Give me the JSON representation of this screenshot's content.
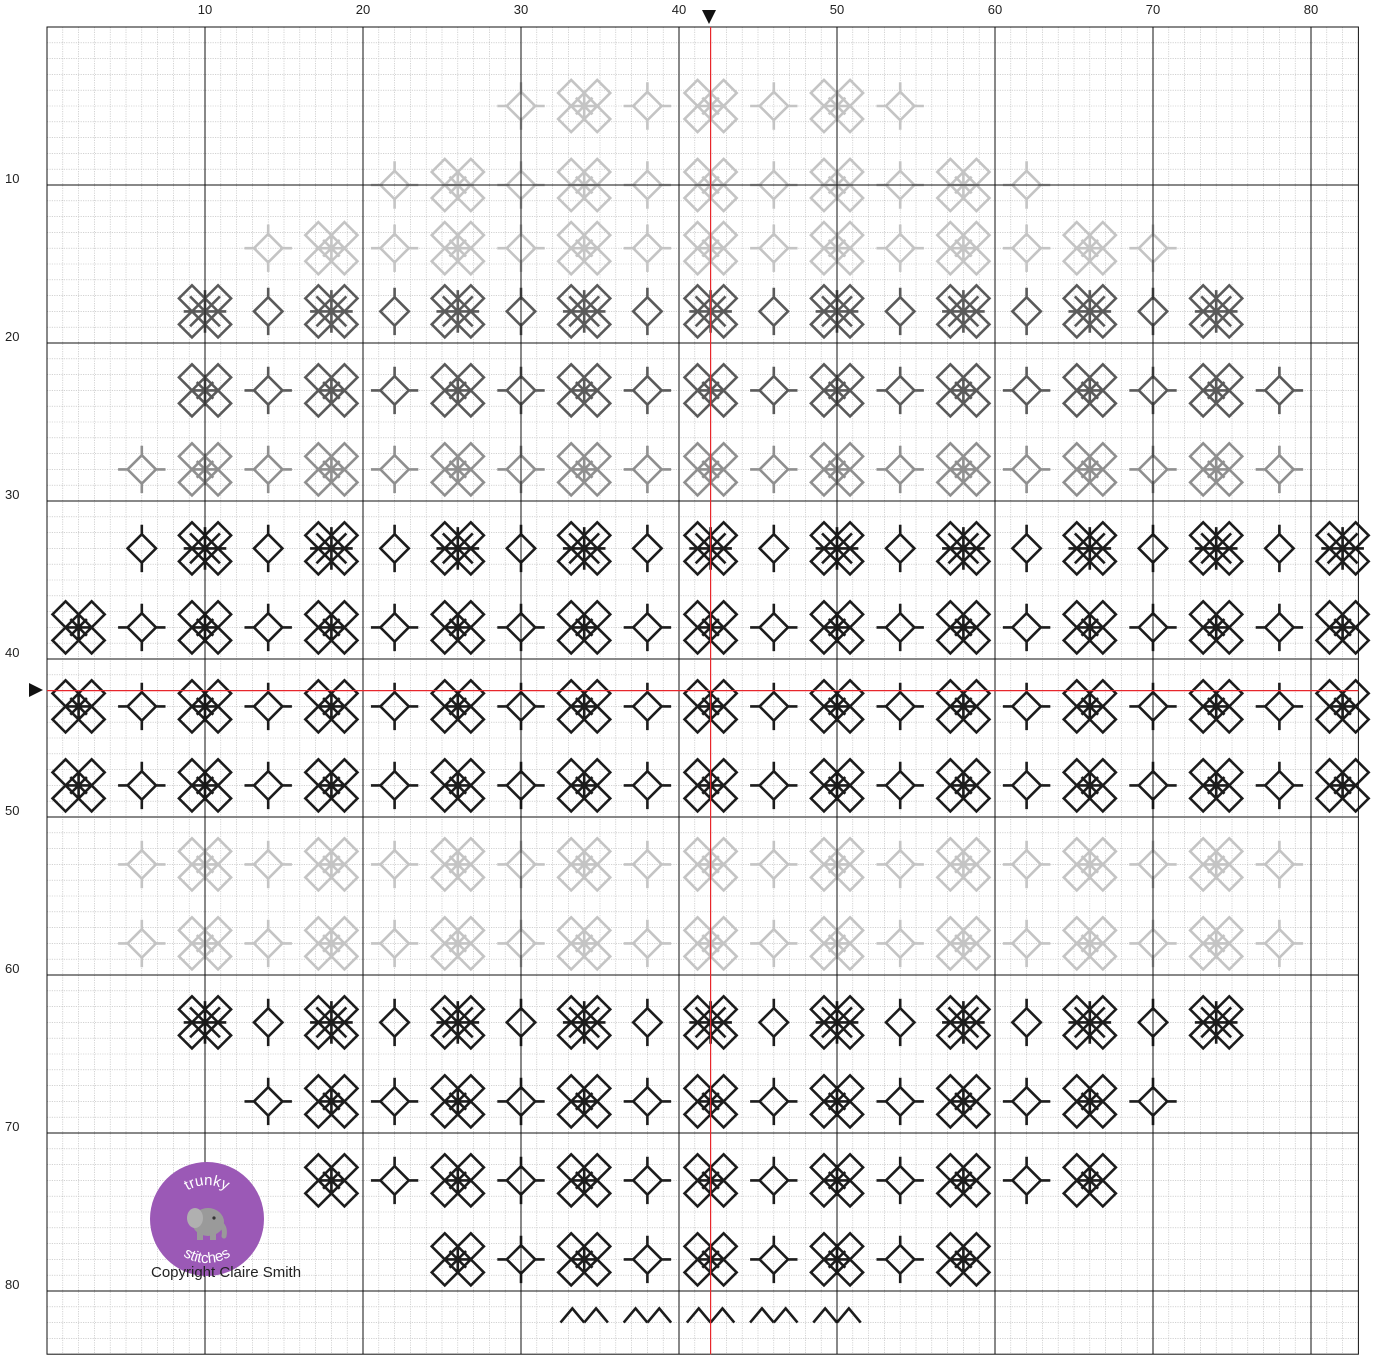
{
  "grid": {
    "columns": 83,
    "rows": 84,
    "major_every": 10,
    "top_labels": [
      "10",
      "20",
      "30",
      "40",
      "50",
      "60",
      "70",
      "80"
    ],
    "left_labels": [
      "10",
      "20",
      "30",
      "40",
      "50",
      "60",
      "70",
      "80"
    ],
    "center_column": 42,
    "center_row": 42,
    "minor_color": "#b8b8b8",
    "major_color": "#111111",
    "center_line_color": "#e8262b"
  },
  "pattern": {
    "colors": {
      "black": "#1c1c1c",
      "dark_gray": "#5a5a5a",
      "mid_gray": "#8f8f8f",
      "light_gray": "#c4c4c4"
    },
    "bands": [
      {
        "center_row": 5,
        "color": "light_gray",
        "col_min": 30,
        "col_max": 56,
        "kind": "motif"
      },
      {
        "center_row": 10,
        "color": "light_gray",
        "col_min": 20,
        "col_max": 64,
        "kind": "motif"
      },
      {
        "center_row": 14,
        "color": "light_gray",
        "col_min": 14,
        "col_max": 70,
        "kind": "motif"
      },
      {
        "center_row": 18,
        "color": "dark_gray",
        "col_min": 10,
        "col_max": 74,
        "kind": "star"
      },
      {
        "center_row": 23,
        "color": "dark_gray",
        "col_min": 7,
        "col_max": 78,
        "kind": "motif"
      },
      {
        "center_row": 28,
        "color": "mid_gray",
        "col_min": 5,
        "col_max": 80,
        "kind": "motif"
      },
      {
        "center_row": 33,
        "color": "black",
        "col_min": 3,
        "col_max": 82,
        "kind": "star"
      },
      {
        "center_row": 38,
        "color": "black",
        "col_min": 2,
        "col_max": 83,
        "kind": "motif"
      },
      {
        "center_row": 43,
        "color": "black",
        "col_min": 2,
        "col_max": 83,
        "kind": "motif"
      },
      {
        "center_row": 48,
        "color": "black",
        "col_min": 2,
        "col_max": 83,
        "kind": "motif"
      },
      {
        "center_row": 53,
        "color": "light_gray",
        "col_min": 4,
        "col_max": 81,
        "kind": "motif"
      },
      {
        "center_row": 58,
        "color": "light_gray",
        "col_min": 5,
        "col_max": 80,
        "kind": "motif"
      },
      {
        "center_row": 63,
        "color": "black",
        "col_min": 8,
        "col_max": 76,
        "kind": "star"
      },
      {
        "center_row": 68,
        "color": "black",
        "col_min": 11,
        "col_max": 72,
        "kind": "motif"
      },
      {
        "center_row": 73,
        "color": "black",
        "col_min": 16,
        "col_max": 68,
        "kind": "motif"
      },
      {
        "center_row": 78,
        "color": "black",
        "col_min": 24,
        "col_max": 60,
        "kind": "motif"
      },
      {
        "center_row": 82,
        "color": "black",
        "col_min": 33,
        "col_max": 50,
        "kind": "chevron"
      }
    ]
  },
  "logo": {
    "text_top": "trunky",
    "text_bottom": "stitches",
    "circle_color": "#9b59b6",
    "icon": "elephant-icon"
  },
  "copyright": "Copyright Claire Smith"
}
